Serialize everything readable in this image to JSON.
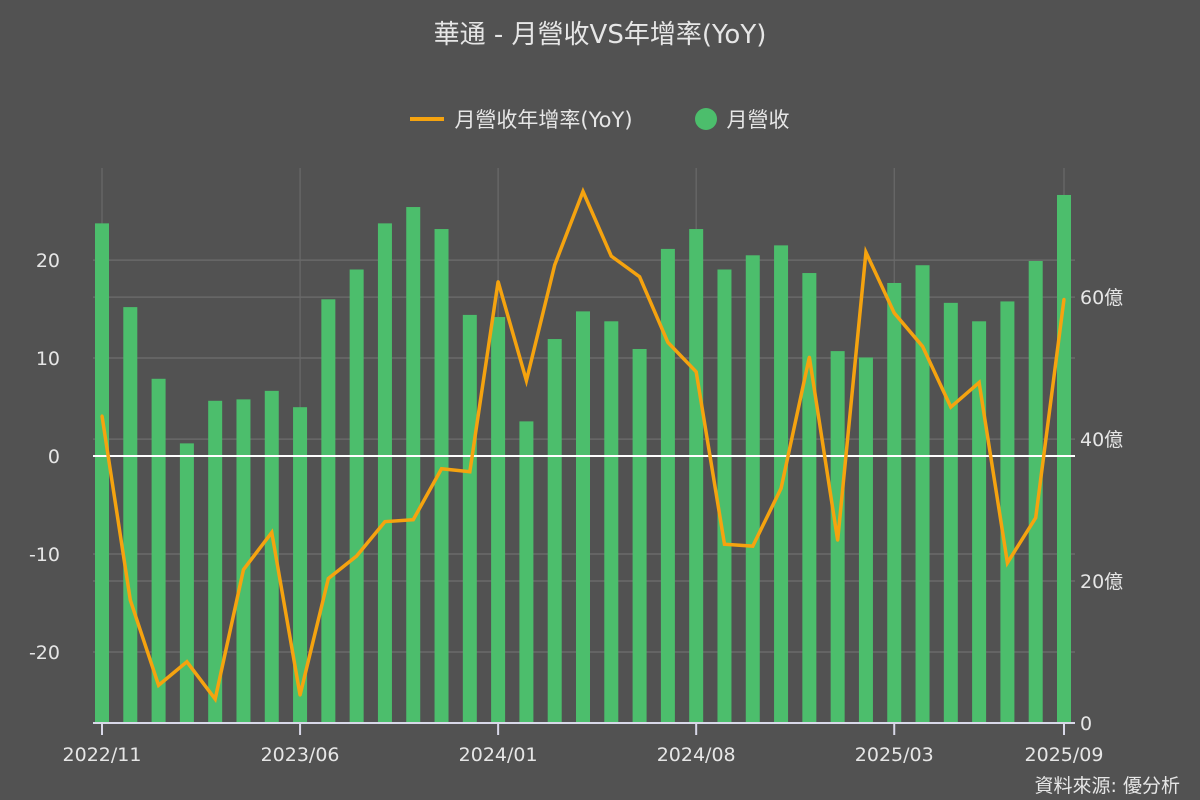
{
  "chart_data": {
    "type": "bar+line",
    "title": "華通 - 月營收VS年增率(YoY)",
    "legend": [
      "月營收年增率(YoY)",
      "月營收"
    ],
    "legend_position": "top-center",
    "source": "資料來源: 優分析",
    "colors": {
      "line": "#f5a30f",
      "bar": "#4cbe6c",
      "background": "#525252"
    },
    "x": [
      "2022/11",
      "2022/12",
      "2023/01",
      "2023/02",
      "2023/03",
      "2023/04",
      "2023/05",
      "2023/06",
      "2023/07",
      "2023/08",
      "2023/09",
      "2023/10",
      "2023/11",
      "2023/12",
      "2024/01",
      "2024/02",
      "2024/03",
      "2024/04",
      "2024/05",
      "2024/06",
      "2024/07",
      "2024/08",
      "2024/09",
      "2024/10",
      "2024/11",
      "2024/12",
      "2025/01",
      "2025/02",
      "2025/03",
      "2025/04",
      "2025/05",
      "2025/06",
      "2025/07",
      "2025/08",
      "2025/09"
    ],
    "x_tick_labels": [
      "2022/11",
      "2023/06",
      "2024/01",
      "2024/08",
      "2025/03",
      "2025/09"
    ],
    "series": [
      {
        "name": "月營收",
        "type": "bar",
        "axis": "right",
        "unit": "億",
        "values": [
          70.4,
          58.6,
          48.5,
          39.4,
          45.4,
          45.6,
          46.8,
          44.5,
          59.7,
          63.9,
          70.4,
          72.7,
          69.6,
          57.5,
          57.2,
          42.5,
          54.1,
          58.0,
          56.6,
          52.7,
          66.8,
          69.6,
          63.9,
          65.9,
          67.3,
          63.4,
          52.4,
          51.5,
          62.0,
          64.5,
          59.2,
          56.6,
          59.4,
          65.1,
          74.4
        ]
      },
      {
        "name": "月營收年增率(YoY)",
        "type": "line",
        "axis": "left",
        "unit": "%",
        "values": [
          4.1,
          -14.7,
          -23.4,
          -21.0,
          -24.8,
          -11.6,
          -7.8,
          -24.4,
          -12.5,
          -10.2,
          -6.7,
          -6.5,
          -1.3,
          -1.6,
          17.8,
          7.7,
          19.5,
          27.0,
          20.4,
          18.3,
          11.6,
          8.6,
          -9.0,
          -9.2,
          -3.3,
          10.1,
          -8.6,
          20.8,
          14.6,
          11.2,
          5.0,
          7.5,
          -10.9,
          -6.3,
          16.0
        ]
      }
    ],
    "left_axis": {
      "ticks": [
        "20",
        "10",
        "0",
        "-10",
        "-20"
      ],
      "tick_values": [
        20,
        10,
        0,
        -10,
        -20
      ],
      "range": [
        -27.25,
        29.4
      ]
    },
    "right_axis": {
      "ticks": [
        "0",
        "20億",
        "40億",
        "60億"
      ],
      "tick_values": [
        0,
        20,
        40,
        60
      ],
      "range": [
        0,
        78.2
      ]
    },
    "grid": true
  }
}
